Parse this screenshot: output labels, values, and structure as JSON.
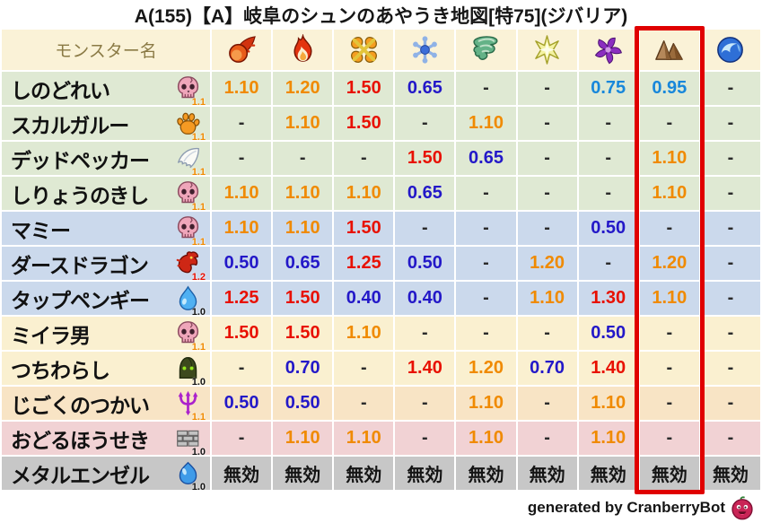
{
  "title": "A(155)【A】岐阜のシュンのあやうき地図[特75](ジバリア)",
  "footer": {
    "credit": "generated by CranberryBot",
    "icon": "cranberry"
  },
  "colors": {
    "header_bg": "#FAF2D7",
    "header_text": "#8A7A45",
    "row_green": "#DFE9D3",
    "row_blue": "#CBD9EC",
    "row_cream": "#FAF0D0",
    "row_peach": "#F8E4C5",
    "row_pink": "#F1D2D4",
    "row_gray": "#C7C7C7",
    "value_red": "#E81000",
    "value_orange": "#F08A00",
    "value_blue": "#2318C8",
    "value_lightblue": "#1787DB",
    "value_dash": "#2B2B2B",
    "value_black": "#141414",
    "highlight_box": "#E00000"
  },
  "chart_data": {
    "type": "table",
    "title": "A(155)【A】岐阜のシュンのあやうき地図[特75](ジバリア)",
    "name_header": "モンスター名",
    "column_icons": [
      "fireball",
      "flame",
      "cross-burst",
      "snowflake",
      "tornado",
      "star",
      "pinwheel",
      "mountain",
      "wave"
    ],
    "highlighted_column_index": 7,
    "immune_label": "無効",
    "rows": [
      {
        "name": "しのどれい",
        "family_icon": "zombie-skull",
        "family_multiplier": "1.1",
        "bg": "green",
        "values": [
          "1.10",
          "1.20",
          "1.50",
          "0.65",
          "-",
          "-",
          "0.75",
          "0.95",
          "-"
        ]
      },
      {
        "name": "スカルガルー",
        "family_icon": "beast-paw",
        "family_multiplier": "1.1",
        "bg": "green",
        "values": [
          "-",
          "1.10",
          "1.50",
          "-",
          "1.10",
          "-",
          "-",
          "-",
          "-"
        ]
      },
      {
        "name": "デッドペッカー",
        "family_icon": "bird-wing",
        "family_multiplier": "1.1",
        "bg": "green",
        "values": [
          "-",
          "-",
          "-",
          "1.50",
          "0.65",
          "-",
          "-",
          "1.10",
          "-"
        ]
      },
      {
        "name": "しりょうのきし",
        "family_icon": "zombie-skull",
        "family_multiplier": "1.1",
        "bg": "green",
        "values": [
          "1.10",
          "1.10",
          "1.10",
          "0.65",
          "-",
          "-",
          "-",
          "1.10",
          "-"
        ]
      },
      {
        "name": "マミー",
        "family_icon": "zombie-skull",
        "family_multiplier": "1.1",
        "bg": "blue",
        "values": [
          "1.10",
          "1.10",
          "1.50",
          "-",
          "-",
          "-",
          "0.50",
          "-",
          "-"
        ]
      },
      {
        "name": "ダースドラゴン",
        "family_icon": "dragon",
        "family_multiplier": "1.2",
        "bg": "blue",
        "values": [
          "0.50",
          "0.65",
          "1.25",
          "0.50",
          "-",
          "1.20",
          "-",
          "1.20",
          "-"
        ]
      },
      {
        "name": "タップペンギー",
        "family_icon": "water-drop",
        "family_multiplier": "1.0",
        "bg": "blue",
        "values": [
          "1.25",
          "1.50",
          "0.40",
          "0.40",
          "-",
          "1.10",
          "1.30",
          "1.10",
          "-"
        ]
      },
      {
        "name": "ミイラ男",
        "family_icon": "zombie-skull",
        "family_multiplier": "1.1",
        "bg": "cream",
        "values": [
          "1.50",
          "1.50",
          "1.10",
          "-",
          "-",
          "-",
          "0.50",
          "-",
          "-"
        ]
      },
      {
        "name": "つちわらし",
        "family_icon": "nature-hood",
        "family_multiplier": "1.0",
        "bg": "cream",
        "values": [
          "-",
          "0.70",
          "-",
          "1.40",
          "1.20",
          "0.70",
          "1.40",
          "-",
          "-"
        ]
      },
      {
        "name": "じごくのつかい",
        "family_icon": "demon-trident",
        "family_multiplier": "1.1",
        "bg": "peach",
        "values": [
          "0.50",
          "0.50",
          "-",
          "-",
          "1.10",
          "-",
          "1.10",
          "-",
          "-"
        ]
      },
      {
        "name": "おどるほうせき",
        "family_icon": "brick-wall",
        "family_multiplier": "1.0",
        "bg": "pink",
        "values": [
          "-",
          "1.10",
          "1.10",
          "-",
          "1.10",
          "-",
          "1.10",
          "-",
          "-"
        ]
      },
      {
        "name": "メタルエンゼル",
        "family_icon": "slime",
        "family_multiplier": "1.0",
        "bg": "gray",
        "values": [
          "無効",
          "無効",
          "無効",
          "無効",
          "無効",
          "無効",
          "無効",
          "無効",
          "無効"
        ]
      }
    ]
  }
}
